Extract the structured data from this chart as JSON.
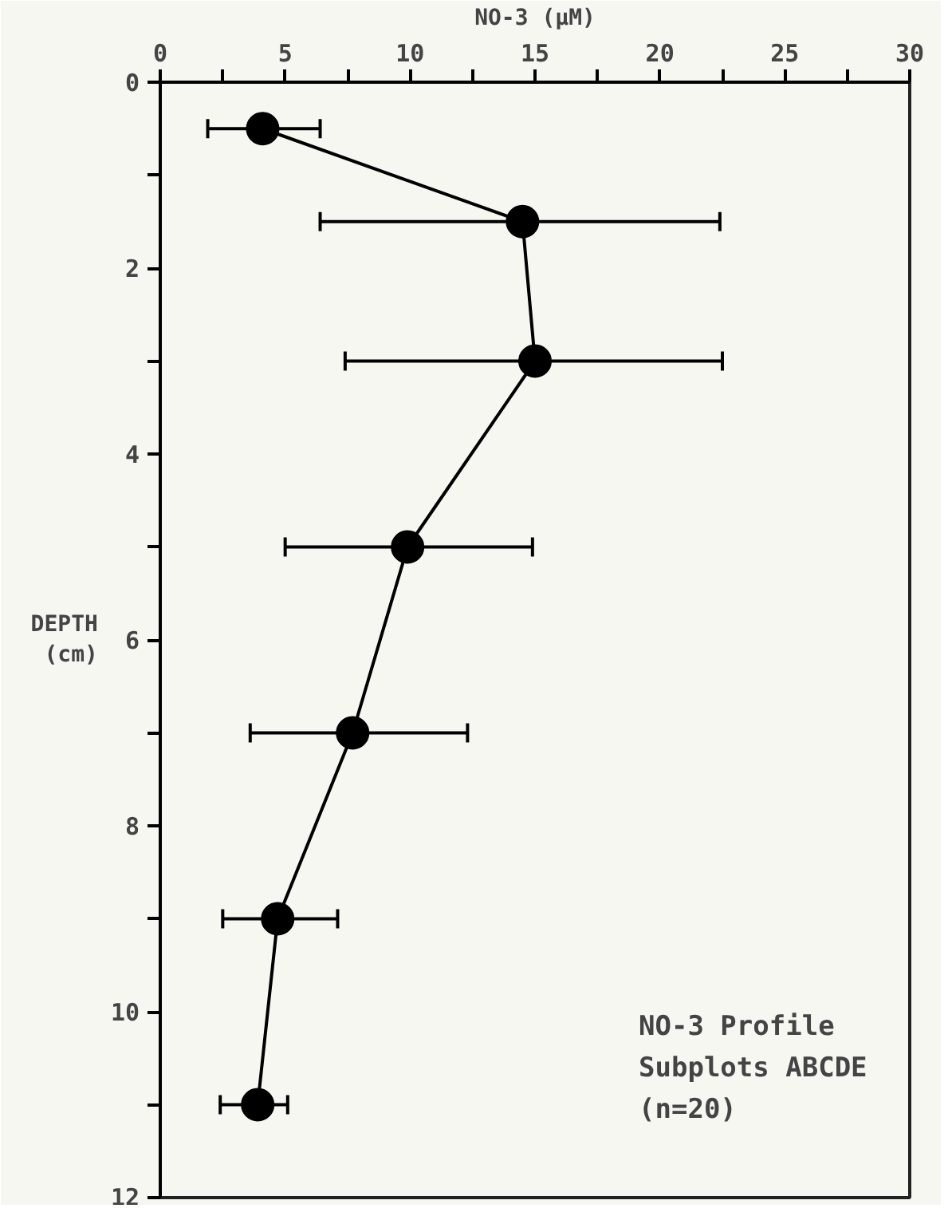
{
  "chart_data": {
    "type": "line",
    "xlabel": "NO-3 (µM)",
    "ylabel": "DEPTH\n(cm)",
    "annotations": [
      "NO-3 Profile\nSubplots ABCDE\n(n=20)"
    ],
    "series": [
      {
        "color": "#000000",
        "x": [
          4.1,
          14.5,
          15.0,
          9.9,
          7.7,
          4.7,
          3.9
        ],
        "values": [
          0.5,
          1.5,
          3.0,
          5.0,
          7.0,
          9.0,
          11.0
        ],
        "xerrors": [
          [
            1.9,
            6.4
          ],
          [
            6.4,
            22.4
          ],
          [
            7.4,
            22.5
          ],
          [
            5.0,
            14.9
          ],
          [
            3.6,
            12.3
          ],
          [
            2.5,
            7.1
          ],
          [
            2.4,
            5.1
          ]
        ]
      }
    ],
    "xlim": [
      0,
      30
    ],
    "ylim": [
      12,
      0
    ],
    "xticks": [
      0,
      {
        "value": 2.5,
        "label": null
      },
      5,
      {
        "value": 7.5,
        "label": null
      },
      10,
      {
        "value": 12.5,
        "label": null
      },
      15,
      {
        "value": 17.5,
        "label": null
      },
      20,
      {
        "value": 22.5,
        "label": null
      },
      25,
      {
        "value": 27.5,
        "label": null
      },
      30
    ],
    "yticks": [
      0,
      {
        "value": 1,
        "label": null
      },
      2,
      {
        "value": 3,
        "label": null
      },
      4,
      {
        "value": 5,
        "label": null
      },
      6,
      {
        "value": 7,
        "label": null
      },
      8,
      {
        "value": 9,
        "label": null
      },
      10,
      {
        "value": 11,
        "label": null
      },
      12
    ],
    "marker": "circle",
    "line_style": "solid",
    "grid": false
  }
}
